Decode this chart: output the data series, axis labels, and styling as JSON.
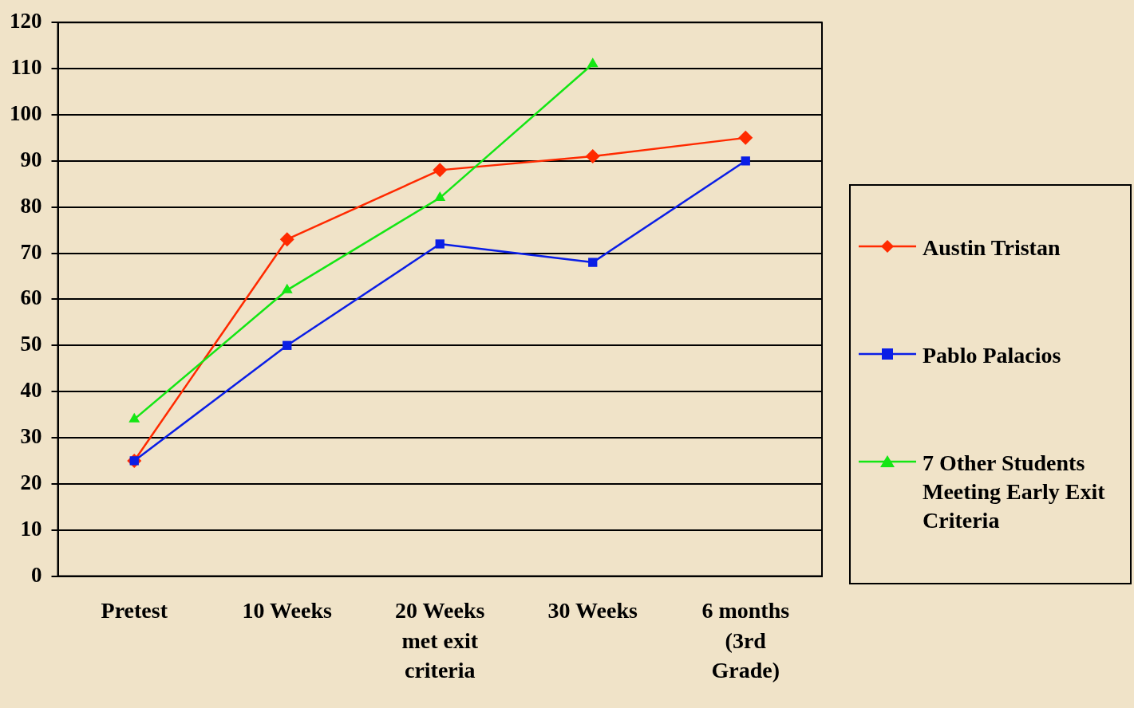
{
  "chart_data": {
    "type": "line",
    "categories": [
      "Pretest",
      "10 Weeks",
      "20 Weeks met exit criteria",
      "30 Weeks",
      "6 months (3rd Grade)"
    ],
    "series": [
      {
        "name": "Austin Tristan",
        "color": "#ff2a00",
        "marker": "diamond",
        "values": [
          25,
          73,
          88,
          91,
          95
        ]
      },
      {
        "name": "Pablo Palacios",
        "color": "#0a1ee6",
        "marker": "square",
        "values": [
          25,
          50,
          72,
          68,
          90
        ]
      },
      {
        "name": "7 Other Students Meeting Early Exit Criteria",
        "color": "#14e614",
        "marker": "triangle",
        "values": [
          34,
          62,
          82,
          111,
          null
        ]
      }
    ],
    "ylim": [
      0,
      120
    ],
    "yticks": [
      0,
      10,
      20,
      30,
      40,
      50,
      60,
      70,
      80,
      90,
      100,
      110,
      120
    ],
    "grid": "y",
    "legend": "right",
    "line_style": "solid"
  }
}
